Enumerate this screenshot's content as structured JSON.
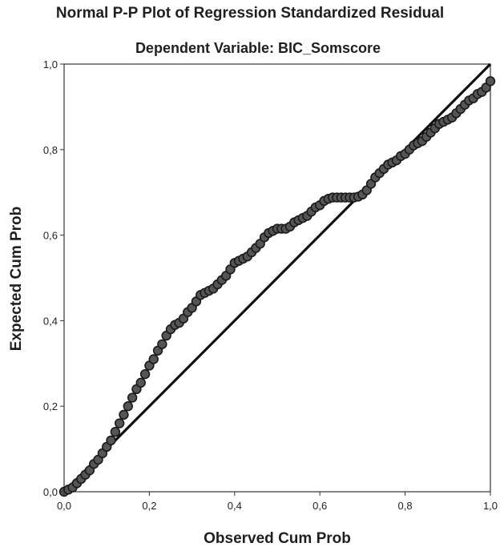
{
  "chart_data": {
    "type": "scatter",
    "title": "Normal P-P Plot of Regression Standardized Residual",
    "subtitle": "Dependent Variable: BIC_Somscore",
    "xlabel": "Observed Cum Prob",
    "ylabel": "Expected Cum Prob",
    "xlim": [
      0,
      1
    ],
    "ylim": [
      0,
      1
    ],
    "xticks": [
      "0,0",
      "0,2",
      "0,4",
      "0,6",
      "0,8",
      "1,0"
    ],
    "yticks": [
      "0,0",
      "0,2",
      "0,4",
      "0,6",
      "0,8",
      "1,0"
    ],
    "grid": false,
    "reference_line": {
      "from": [
        0,
        0
      ],
      "to": [
        1,
        1
      ]
    },
    "point_color": "#555555",
    "point_stroke": "#1a1a1a",
    "series": [
      {
        "values": [
          [
            0.0,
            0.0
          ],
          [
            0.01,
            0.005
          ],
          [
            0.02,
            0.01
          ],
          [
            0.03,
            0.02
          ],
          [
            0.04,
            0.03
          ],
          [
            0.05,
            0.04
          ],
          [
            0.06,
            0.05
          ],
          [
            0.07,
            0.065
          ],
          [
            0.08,
            0.075
          ],
          [
            0.09,
            0.09
          ],
          [
            0.1,
            0.105
          ],
          [
            0.11,
            0.12
          ],
          [
            0.12,
            0.14
          ],
          [
            0.13,
            0.16
          ],
          [
            0.14,
            0.18
          ],
          [
            0.15,
            0.2
          ],
          [
            0.16,
            0.22
          ],
          [
            0.17,
            0.24
          ],
          [
            0.18,
            0.255
          ],
          [
            0.19,
            0.275
          ],
          [
            0.2,
            0.295
          ],
          [
            0.21,
            0.31
          ],
          [
            0.22,
            0.33
          ],
          [
            0.23,
            0.345
          ],
          [
            0.24,
            0.365
          ],
          [
            0.25,
            0.38
          ],
          [
            0.26,
            0.39
          ],
          [
            0.27,
            0.395
          ],
          [
            0.28,
            0.405
          ],
          [
            0.29,
            0.42
          ],
          [
            0.3,
            0.43
          ],
          [
            0.31,
            0.445
          ],
          [
            0.32,
            0.46
          ],
          [
            0.33,
            0.465
          ],
          [
            0.34,
            0.47
          ],
          [
            0.35,
            0.475
          ],
          [
            0.36,
            0.485
          ],
          [
            0.37,
            0.495
          ],
          [
            0.38,
            0.505
          ],
          [
            0.39,
            0.52
          ],
          [
            0.4,
            0.535
          ],
          [
            0.41,
            0.54
          ],
          [
            0.42,
            0.545
          ],
          [
            0.43,
            0.55
          ],
          [
            0.44,
            0.56
          ],
          [
            0.45,
            0.57
          ],
          [
            0.46,
            0.58
          ],
          [
            0.47,
            0.595
          ],
          [
            0.48,
            0.605
          ],
          [
            0.49,
            0.61
          ],
          [
            0.5,
            0.615
          ],
          [
            0.51,
            0.615
          ],
          [
            0.52,
            0.615
          ],
          [
            0.53,
            0.62
          ],
          [
            0.54,
            0.63
          ],
          [
            0.55,
            0.635
          ],
          [
            0.56,
            0.64
          ],
          [
            0.57,
            0.645
          ],
          [
            0.58,
            0.655
          ],
          [
            0.59,
            0.665
          ],
          [
            0.6,
            0.67
          ],
          [
            0.61,
            0.68
          ],
          [
            0.62,
            0.685
          ],
          [
            0.63,
            0.688
          ],
          [
            0.64,
            0.688
          ],
          [
            0.65,
            0.688
          ],
          [
            0.66,
            0.688
          ],
          [
            0.67,
            0.688
          ],
          [
            0.68,
            0.688
          ],
          [
            0.69,
            0.69
          ],
          [
            0.7,
            0.695
          ],
          [
            0.71,
            0.705
          ],
          [
            0.72,
            0.72
          ],
          [
            0.73,
            0.735
          ],
          [
            0.74,
            0.745
          ],
          [
            0.75,
            0.755
          ],
          [
            0.76,
            0.765
          ],
          [
            0.77,
            0.77
          ],
          [
            0.78,
            0.775
          ],
          [
            0.79,
            0.785
          ],
          [
            0.8,
            0.79
          ],
          [
            0.81,
            0.8
          ],
          [
            0.82,
            0.81
          ],
          [
            0.83,
            0.815
          ],
          [
            0.84,
            0.82
          ],
          [
            0.85,
            0.83
          ],
          [
            0.86,
            0.84
          ],
          [
            0.87,
            0.85
          ],
          [
            0.88,
            0.86
          ],
          [
            0.89,
            0.865
          ],
          [
            0.9,
            0.87
          ],
          [
            0.91,
            0.875
          ],
          [
            0.92,
            0.885
          ],
          [
            0.93,
            0.895
          ],
          [
            0.94,
            0.905
          ],
          [
            0.95,
            0.915
          ],
          [
            0.96,
            0.92
          ],
          [
            0.97,
            0.93
          ],
          [
            0.98,
            0.935
          ],
          [
            0.99,
            0.945
          ],
          [
            1.0,
            0.96
          ]
        ]
      }
    ]
  }
}
